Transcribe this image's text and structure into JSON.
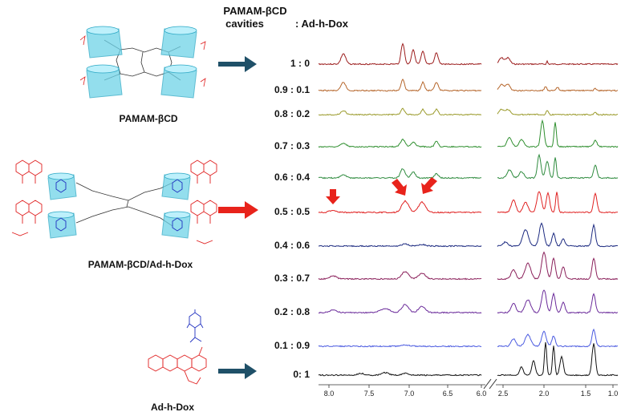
{
  "header": {
    "line1": "PAMAM-βCD",
    "line2": "cavities",
    "line3": ": Ad-h-Dox"
  },
  "structures": [
    {
      "label": "PAMAM-βCD"
    },
    {
      "label": "PAMAM-βCD/Ad-h-Dox"
    },
    {
      "label": "Ad-h-Dox"
    }
  ],
  "spectra": [
    {
      "ratio": "1 : 0",
      "color": "#9c1d1d"
    },
    {
      "ratio": "0.9 : 0.1",
      "color": "#b5652a"
    },
    {
      "ratio": "0.8 : 0.2",
      "color": "#9a9a2a"
    },
    {
      "ratio": "0.7 : 0.3",
      "color": "#2f8f2f"
    },
    {
      "ratio": "0.6 : 0.4",
      "color": "#2e8b3e"
    },
    {
      "ratio": "0.5 : 0.5",
      "color": "#e02020",
      "highlight": "#1f2fcf"
    },
    {
      "ratio": "0.4 : 0.6",
      "color": "#1c2a80"
    },
    {
      "ratio": "0.3 : 0.7",
      "color": "#8a1f5a"
    },
    {
      "ratio": "0.2 : 0.8",
      "color": "#6a2a9a"
    },
    {
      "ratio": "0.1 : 0.9",
      "color": "#4a5ae0"
    },
    {
      "ratio": "0:  1",
      "color": "#111111"
    }
  ],
  "axis": {
    "left_ticks": [
      "8.0",
      "7.5",
      "7.0",
      "6.5",
      "6.0"
    ],
    "right_ticks": [
      "2.5",
      "2.0",
      "1.5",
      "1.0"
    ]
  },
  "colors": {
    "cd_fill": "#6fd3e8",
    "dox_red": "#e02020",
    "arrow_dark": "#1f5068",
    "arrow_red": "#e8231b"
  }
}
